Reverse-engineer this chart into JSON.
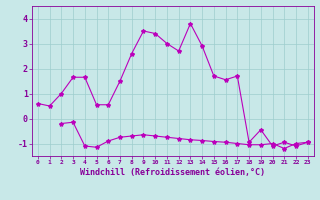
{
  "line1_x": [
    0,
    1,
    2,
    3,
    4,
    5,
    6,
    7,
    8,
    9,
    10,
    11,
    12,
    13,
    14,
    15,
    16,
    17,
    18,
    19,
    20,
    21,
    22,
    23
  ],
  "line1_y": [
    0.6,
    0.5,
    1.0,
    1.65,
    1.65,
    0.55,
    0.55,
    1.5,
    2.6,
    3.5,
    3.4,
    3.0,
    2.7,
    3.8,
    2.9,
    1.7,
    1.55,
    1.7,
    -0.95,
    -0.45,
    -1.1,
    -0.95,
    -1.1,
    -0.95
  ],
  "line2_x": [
    2,
    3,
    4,
    5,
    6,
    7,
    8,
    9,
    10,
    11,
    12,
    13,
    14,
    15,
    16,
    17,
    18,
    19,
    20,
    21,
    22,
    23
  ],
  "line2_y": [
    -0.2,
    -0.15,
    -1.1,
    -1.15,
    -0.9,
    -0.75,
    -0.7,
    -0.65,
    -0.7,
    -0.75,
    -0.8,
    -0.85,
    -0.88,
    -0.92,
    -0.95,
    -1.0,
    -1.05,
    -1.05,
    -1.0,
    -1.2,
    -1.0,
    -0.95
  ],
  "line_color": "#BB00BB",
  "bg_color": "#C8E8E8",
  "grid_color": "#9DCECE",
  "axis_color": "#880099",
  "xlabel": "Windchill (Refroidissement éolien,°C)",
  "ylim": [
    -1.5,
    4.5
  ],
  "xlim": [
    -0.5,
    23.5
  ],
  "yticks": [
    -1,
    0,
    1,
    2,
    3,
    4
  ],
  "xticks": [
    0,
    1,
    2,
    3,
    4,
    5,
    6,
    7,
    8,
    9,
    10,
    11,
    12,
    13,
    14,
    15,
    16,
    17,
    18,
    19,
    20,
    21,
    22,
    23
  ]
}
